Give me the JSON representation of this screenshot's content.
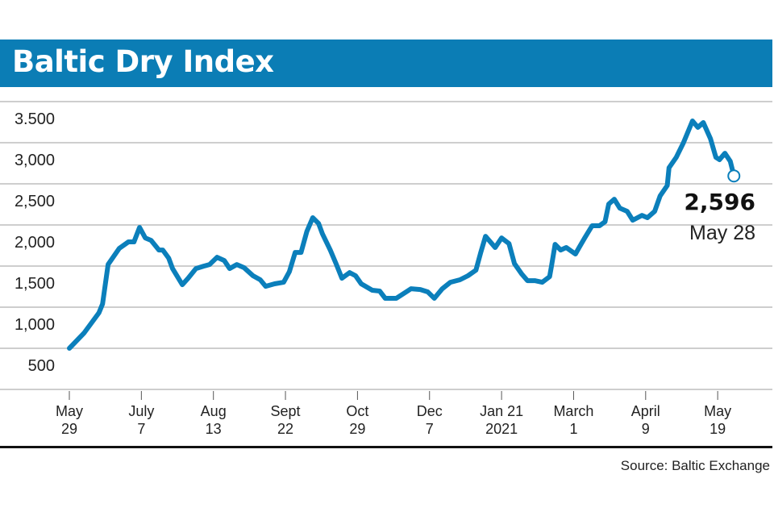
{
  "header": {
    "title": "Baltic Dry Index"
  },
  "source": "Source: Baltic Exchange",
  "colors": {
    "title_bar": "#0b7db5",
    "line": "#0b7fbb",
    "grid": "#bdbdbd",
    "rule": "#111111"
  },
  "chart_data": {
    "type": "line",
    "title": "Baltic Dry Index",
    "xlabel": "",
    "ylabel": "",
    "ylim": [
      0,
      3500
    ],
    "grid": true,
    "y_ticks": [
      {
        "value": 3500,
        "label": "3.500"
      },
      {
        "value": 3000,
        "label": "3,000"
      },
      {
        "value": 2500,
        "label": "2,500"
      },
      {
        "value": 2000,
        "label": "2,000"
      },
      {
        "value": 1500,
        "label": "1,500"
      },
      {
        "value": 1000,
        "label": "1,000"
      },
      {
        "value": 500,
        "label": "500"
      }
    ],
    "x_ticks": [
      {
        "date": "2020-05-29",
        "line1": "May",
        "line2": "29"
      },
      {
        "date": "2020-07-07",
        "line1": "July",
        "line2": "7"
      },
      {
        "date": "2020-08-13",
        "line1": "Aug",
        "line2": "13"
      },
      {
        "date": "2020-09-22",
        "line1": "Sept",
        "line2": "22"
      },
      {
        "date": "2020-10-29",
        "line1": "Oct",
        "line2": "29"
      },
      {
        "date": "2020-12-07",
        "line1": "Dec",
        "line2": "7"
      },
      {
        "date": "2021-01-21",
        "line1": "Jan 21",
        "line2": "2021"
      },
      {
        "date": "2021-03-01",
        "line1": "March",
        "line2": "1"
      },
      {
        "date": "2021-04-09",
        "line1": "April",
        "line2": "9"
      },
      {
        "date": "2021-05-19",
        "line1": "May",
        "line2": "19"
      }
    ],
    "end_label": {
      "value": "2,596",
      "date": "May 28"
    },
    "series": [
      {
        "points": [
          [
            "2020-05-29",
            500
          ],
          [
            "2020-06-06",
            686
          ],
          [
            "2020-06-14",
            931
          ],
          [
            "2020-06-16",
            1039
          ],
          [
            "2020-06-19",
            1520
          ],
          [
            "2020-06-25",
            1715
          ],
          [
            "2020-06-30",
            1794
          ],
          [
            "2020-07-03",
            1794
          ],
          [
            "2020-07-06",
            1970
          ],
          [
            "2020-07-09",
            1842
          ],
          [
            "2020-07-12",
            1813
          ],
          [
            "2020-07-16",
            1695
          ],
          [
            "2020-07-18",
            1695
          ],
          [
            "2020-07-21",
            1597
          ],
          [
            "2020-07-23",
            1470
          ],
          [
            "2020-07-28",
            1274
          ],
          [
            "2020-07-31",
            1352
          ],
          [
            "2020-08-04",
            1470
          ],
          [
            "2020-08-08",
            1499
          ],
          [
            "2020-08-11",
            1519
          ],
          [
            "2020-08-15",
            1607
          ],
          [
            "2020-08-19",
            1568
          ],
          [
            "2020-08-22",
            1470
          ],
          [
            "2020-08-26",
            1519
          ],
          [
            "2020-08-30",
            1480
          ],
          [
            "2020-09-04",
            1382
          ],
          [
            "2020-09-08",
            1333
          ],
          [
            "2020-09-11",
            1254
          ],
          [
            "2020-09-16",
            1284
          ],
          [
            "2020-09-21",
            1303
          ],
          [
            "2020-09-24",
            1431
          ],
          [
            "2020-09-27",
            1666
          ],
          [
            "2020-09-30",
            1666
          ],
          [
            "2020-10-03",
            1921
          ],
          [
            "2020-10-06",
            2088
          ],
          [
            "2020-10-09",
            2019
          ],
          [
            "2020-10-11",
            1892
          ],
          [
            "2020-10-15",
            1695
          ],
          [
            "2020-10-18",
            1529
          ],
          [
            "2020-10-21",
            1352
          ],
          [
            "2020-10-25",
            1421
          ],
          [
            "2020-10-28",
            1382
          ],
          [
            "2020-10-31",
            1284
          ],
          [
            "2020-11-06",
            1206
          ],
          [
            "2020-11-10",
            1196
          ],
          [
            "2020-11-13",
            1108
          ],
          [
            "2020-11-19",
            1108
          ],
          [
            "2020-11-27",
            1225
          ],
          [
            "2020-12-02",
            1215
          ],
          [
            "2020-12-06",
            1186
          ],
          [
            "2020-12-10",
            1108
          ],
          [
            "2020-12-15",
            1225
          ],
          [
            "2020-12-20",
            1303
          ],
          [
            "2020-12-26",
            1333
          ],
          [
            "2020-12-31",
            1382
          ],
          [
            "2021-01-05",
            1450
          ],
          [
            "2021-01-08",
            1666
          ],
          [
            "2021-01-11",
            1862
          ],
          [
            "2021-01-17",
            1725
          ],
          [
            "2021-01-21",
            1842
          ],
          [
            "2021-01-25",
            1774
          ],
          [
            "2021-01-28",
            1529
          ],
          [
            "2021-02-01",
            1401
          ],
          [
            "2021-02-04",
            1323
          ],
          [
            "2021-02-08",
            1323
          ],
          [
            "2021-02-12",
            1303
          ],
          [
            "2021-02-16",
            1372
          ],
          [
            "2021-02-17",
            1499
          ],
          [
            "2021-02-19",
            1764
          ],
          [
            "2021-02-22",
            1695
          ],
          [
            "2021-02-25",
            1725
          ],
          [
            "2021-03-02",
            1646
          ],
          [
            "2021-03-04",
            1725
          ],
          [
            "2021-03-07",
            1842
          ],
          [
            "2021-03-11",
            1990
          ],
          [
            "2021-03-15",
            1990
          ],
          [
            "2021-03-18",
            2038
          ],
          [
            "2021-03-20",
            2254
          ],
          [
            "2021-03-23",
            2313
          ],
          [
            "2021-03-26",
            2205
          ],
          [
            "2021-03-30",
            2166
          ],
          [
            "2021-04-02",
            2058
          ],
          [
            "2021-04-07",
            2117
          ],
          [
            "2021-04-10",
            2088
          ],
          [
            "2021-04-14",
            2166
          ],
          [
            "2021-04-17",
            2352
          ],
          [
            "2021-04-21",
            2479
          ],
          [
            "2021-04-22",
            2695
          ],
          [
            "2021-04-26",
            2823
          ],
          [
            "2021-04-30",
            3000
          ],
          [
            "2021-05-05",
            3265
          ],
          [
            "2021-05-08",
            3186
          ],
          [
            "2021-05-11",
            3245
          ],
          [
            "2021-05-15",
            3049
          ],
          [
            "2021-05-18",
            2823
          ],
          [
            "2021-05-20",
            2794
          ],
          [
            "2021-05-23",
            2872
          ],
          [
            "2021-05-26",
            2774
          ],
          [
            "2021-05-28",
            2596
          ]
        ]
      }
    ]
  }
}
